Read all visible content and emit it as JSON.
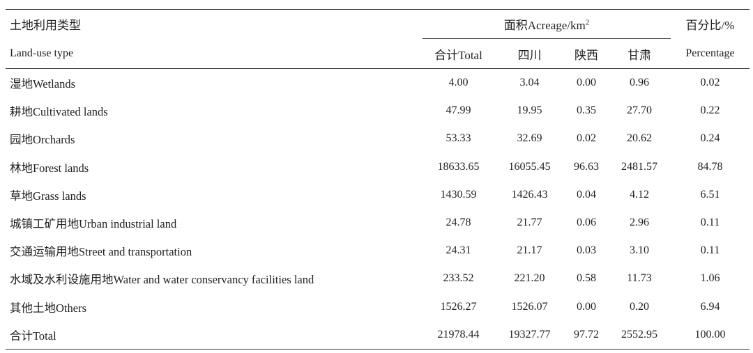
{
  "table": {
    "header": {
      "type_cn": "土地利用类型",
      "type_en": "Land-use type",
      "area_group_title": "面积Acreage/km",
      "area_unit_sup": "2",
      "percent_cn": "百分比/%",
      "percent_en": "Percentage",
      "col_total": "合计Total",
      "col_sichuan": "四川",
      "col_shaanxi": "陕西",
      "col_gansu": "甘肃"
    },
    "rows": [
      {
        "name": "湿地Wetlands",
        "total": "4.00",
        "sichuan": "3.04",
        "shaanxi": "0.00",
        "gansu": "0.96",
        "pct": "0.02"
      },
      {
        "name": "耕地Cultivated lands",
        "total": "47.99",
        "sichuan": "19.95",
        "shaanxi": "0.35",
        "gansu": "27.70",
        "pct": "0.22"
      },
      {
        "name": "园地Orchards",
        "total": "53.33",
        "sichuan": "32.69",
        "shaanxi": "0.02",
        "gansu": "20.62",
        "pct": "0.24"
      },
      {
        "name": "林地Forest lands",
        "total": "18633.65",
        "sichuan": "16055.45",
        "shaanxi": "96.63",
        "gansu": "2481.57",
        "pct": "84.78"
      },
      {
        "name": "草地Grass lands",
        "total": "1430.59",
        "sichuan": "1426.43",
        "shaanxi": "0.04",
        "gansu": "4.12",
        "pct": "6.51"
      },
      {
        "name": "城镇工矿用地Urban industrial land",
        "total": "24.78",
        "sichuan": "21.77",
        "shaanxi": "0.06",
        "gansu": "2.96",
        "pct": "0.11"
      },
      {
        "name": "交通运输用地Street and transportation",
        "total": "24.31",
        "sichuan": "21.17",
        "shaanxi": "0.03",
        "gansu": "3.10",
        "pct": "0.11"
      },
      {
        "name": "水域及水利设施用地Water and water conservancy facilities land",
        "total": "233.52",
        "sichuan": "221.20",
        "shaanxi": "0.58",
        "gansu": "11.73",
        "pct": "1.06"
      },
      {
        "name": "其他土地Others",
        "total": "1526.27",
        "sichuan": "1526.07",
        "shaanxi": "0.00",
        "gansu": "0.20",
        "pct": "6.94"
      },
      {
        "name": "合计Total",
        "total": "21978.44",
        "sichuan": "19327.77",
        "shaanxi": "97.72",
        "gansu": "2552.95",
        "pct": "100.00"
      }
    ]
  }
}
